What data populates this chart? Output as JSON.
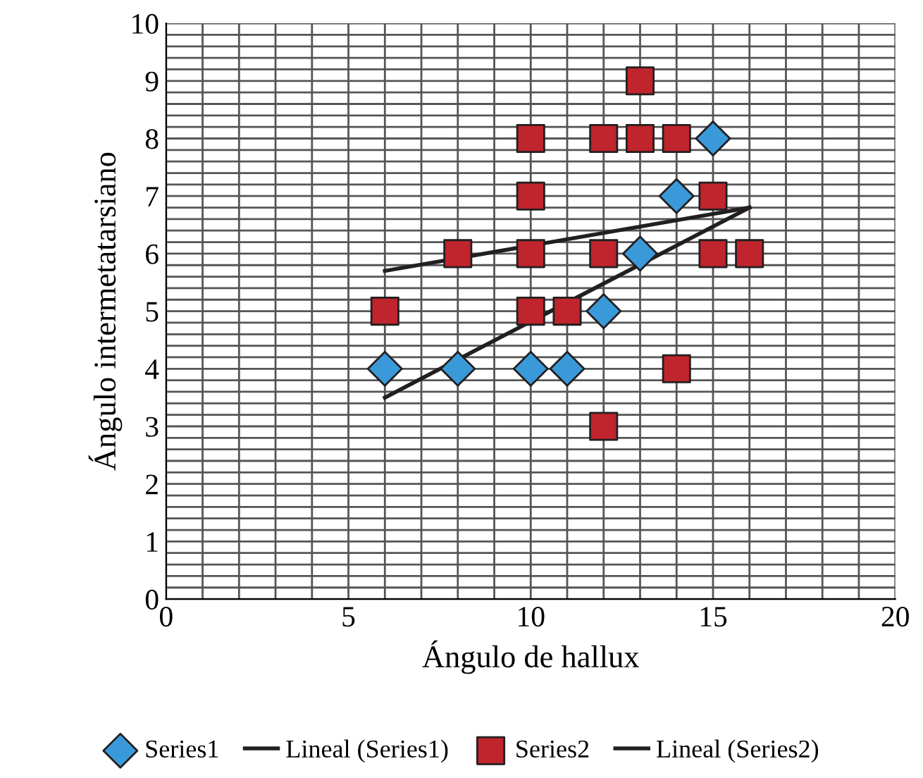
{
  "chart_data": {
    "type": "scatter",
    "xlabel": "Ángulo de hallux",
    "ylabel": "Ángulo intermetatarsiano",
    "xlim": [
      0,
      20
    ],
    "ylim": [
      0,
      10
    ],
    "xticks": [
      0,
      {
        "value": 1,
        "label": null
      },
      {
        "value": 2,
        "label": null
      },
      {
        "value": 3,
        "label": null
      },
      {
        "value": 4,
        "label": null
      },
      5,
      {
        "value": 6,
        "label": null
      },
      {
        "value": 7,
        "label": null
      },
      {
        "value": 8,
        "label": null
      },
      {
        "value": 9,
        "label": null
      },
      10,
      {
        "value": 11,
        "label": null
      },
      {
        "value": 12,
        "label": null
      },
      {
        "value": 13,
        "label": null
      },
      {
        "value": 14,
        "label": null
      },
      15,
      {
        "value": 16,
        "label": null
      },
      {
        "value": 17,
        "label": null
      },
      {
        "value": 18,
        "label": null
      },
      {
        "value": 19,
        "label": null
      },
      20
    ],
    "yticks": [
      0,
      {
        "value": 0.2,
        "label": null
      },
      {
        "value": 0.4,
        "label": null
      },
      {
        "value": 0.6,
        "label": null
      },
      {
        "value": 0.8,
        "label": null
      },
      1,
      {
        "value": 1.2,
        "label": null
      },
      {
        "value": 1.4,
        "label": null
      },
      {
        "value": 1.6,
        "label": null
      },
      {
        "value": 1.8,
        "label": null
      },
      2,
      {
        "value": 2.2,
        "label": null
      },
      {
        "value": 2.4,
        "label": null
      },
      {
        "value": 2.6,
        "label": null
      },
      {
        "value": 2.8,
        "label": null
      },
      3,
      {
        "value": 3.2,
        "label": null
      },
      {
        "value": 3.4,
        "label": null
      },
      {
        "value": 3.6,
        "label": null
      },
      {
        "value": 3.8,
        "label": null
      },
      4,
      {
        "value": 4.2,
        "label": null
      },
      {
        "value": 4.4,
        "label": null
      },
      {
        "value": 4.6,
        "label": null
      },
      {
        "value": 4.8,
        "label": null
      },
      5,
      {
        "value": 5.2,
        "label": null
      },
      {
        "value": 5.4,
        "label": null
      },
      {
        "value": 5.6,
        "label": null
      },
      {
        "value": 5.8,
        "label": null
      },
      6,
      {
        "value": 6.2,
        "label": null
      },
      {
        "value": 6.4,
        "label": null
      },
      {
        "value": 6.6,
        "label": null
      },
      {
        "value": 6.8,
        "label": null
      },
      7,
      {
        "value": 7.2,
        "label": null
      },
      {
        "value": 7.4,
        "label": null
      },
      {
        "value": 7.6,
        "label": null
      },
      {
        "value": 7.8,
        "label": null
      },
      8,
      {
        "value": 8.2,
        "label": null
      },
      {
        "value": 8.4,
        "label": null
      },
      {
        "value": 8.6,
        "label": null
      },
      {
        "value": 8.8,
        "label": null
      },
      9,
      {
        "value": 9.2,
        "label": null
      },
      {
        "value": 9.4,
        "label": null
      },
      {
        "value": 9.6,
        "label": null
      },
      {
        "value": 9.8,
        "label": null
      },
      10
    ],
    "grid": true,
    "legend": "bottom",
    "series": [
      {
        "name": "Series1",
        "marker": "diamond",
        "color": "#3a9ad9",
        "x": [
          6,
          8,
          10,
          11,
          12,
          13,
          14,
          15
        ],
        "values": [
          4,
          4,
          4,
          4,
          5,
          6,
          7,
          8
        ]
      },
      {
        "name": "Lineal (Series1)",
        "type": "line",
        "marker": "none",
        "line_style": "solid",
        "color": "#231f20",
        "x": [
          6,
          16
        ],
        "values": [
          3.5,
          6.8
        ]
      },
      {
        "name": "Series2",
        "marker": "square",
        "color": "#c0242c",
        "x": [
          6,
          8,
          10,
          10,
          10,
          10,
          11,
          12,
          12,
          12,
          13,
          13,
          14,
          14,
          15,
          15,
          16
        ],
        "values": [
          5,
          6,
          8,
          7,
          6,
          5,
          5,
          8,
          6,
          3,
          9,
          8,
          8,
          4,
          7,
          6,
          6
        ]
      },
      {
        "name": "Lineal (Series2)",
        "type": "line",
        "marker": "none",
        "line_style": "solid",
        "color": "#231f20",
        "x": [
          6,
          16
        ],
        "values": [
          5.7,
          6.8
        ]
      }
    ]
  }
}
